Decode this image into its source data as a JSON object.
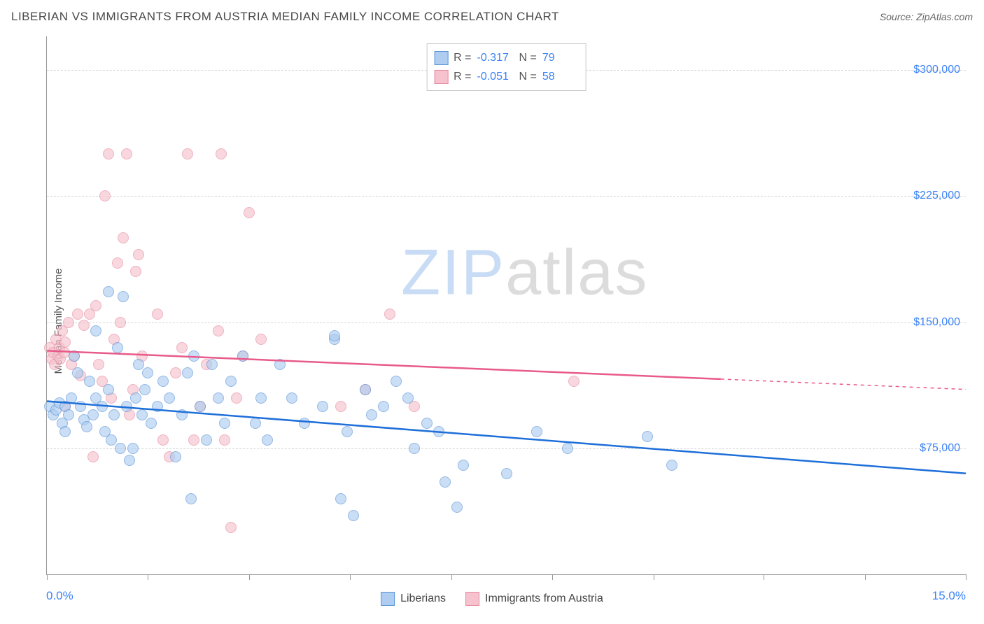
{
  "header": {
    "title": "LIBERIAN VS IMMIGRANTS FROM AUSTRIA MEDIAN FAMILY INCOME CORRELATION CHART",
    "source_label": "Source:",
    "source_value": "ZipAtlas.com"
  },
  "watermark": {
    "part1": "ZIP",
    "part2": "atlas"
  },
  "chart": {
    "type": "scatter",
    "ylabel": "Median Family Income",
    "xlim": [
      0,
      15
    ],
    "ylim": [
      0,
      320000
    ],
    "x_axis": {
      "start_label": "0.0%",
      "end_label": "15.0%",
      "tick_positions_pct": [
        0,
        11,
        22,
        33,
        44,
        55,
        66,
        78,
        89,
        100
      ]
    },
    "y_axis": {
      "gridlines": [
        75000,
        150000,
        225000,
        300000
      ],
      "labels": [
        "$75,000",
        "$150,000",
        "$225,000",
        "$300,000"
      ],
      "label_fontsize": 16,
      "label_color": "#3b82f6"
    },
    "background_color": "#ffffff",
    "grid_color": "#d8d8d8",
    "marker_radius": 8,
    "series": [
      {
        "id": "liberians",
        "label": "Liberians",
        "fill": "#aecdf0",
        "stroke": "#5a94d8",
        "fill_opacity": 0.65,
        "R": "-0.317",
        "N": "79",
        "trend": {
          "color": "#1e6fd9",
          "width": 2.5,
          "y_at_x0": 103000,
          "y_at_x15": 60000,
          "x_solid_end": 15
        },
        "points": [
          [
            0.05,
            100000
          ],
          [
            0.1,
            95000
          ],
          [
            0.15,
            98000
          ],
          [
            0.2,
            102000
          ],
          [
            0.25,
            90000
          ],
          [
            0.3,
            85000
          ],
          [
            0.3,
            100000
          ],
          [
            0.35,
            95000
          ],
          [
            0.4,
            105000
          ],
          [
            0.45,
            130000
          ],
          [
            0.5,
            120000
          ],
          [
            0.55,
            100000
          ],
          [
            0.6,
            92000
          ],
          [
            0.65,
            88000
          ],
          [
            0.7,
            115000
          ],
          [
            0.75,
            95000
          ],
          [
            0.8,
            105000
          ],
          [
            0.9,
            100000
          ],
          [
            0.95,
            85000
          ],
          [
            1.0,
            110000
          ],
          [
            1.05,
            80000
          ],
          [
            1.1,
            95000
          ],
          [
            1.15,
            135000
          ],
          [
            1.2,
            75000
          ],
          [
            1.25,
            165000
          ],
          [
            1.3,
            100000
          ],
          [
            1.35,
            68000
          ],
          [
            1.4,
            75000
          ],
          [
            1.45,
            105000
          ],
          [
            1.5,
            125000
          ],
          [
            1.55,
            95000
          ],
          [
            1.6,
            110000
          ],
          [
            1.65,
            120000
          ],
          [
            1.7,
            90000
          ],
          [
            1.8,
            100000
          ],
          [
            1.9,
            115000
          ],
          [
            2.0,
            105000
          ],
          [
            2.1,
            70000
          ],
          [
            2.2,
            95000
          ],
          [
            2.3,
            120000
          ],
          [
            2.35,
            45000
          ],
          [
            2.4,
            130000
          ],
          [
            2.5,
            100000
          ],
          [
            2.6,
            80000
          ],
          [
            2.7,
            125000
          ],
          [
            2.8,
            105000
          ],
          [
            2.9,
            90000
          ],
          [
            3.0,
            115000
          ],
          [
            3.2,
            130000
          ],
          [
            3.4,
            90000
          ],
          [
            3.5,
            105000
          ],
          [
            3.6,
            80000
          ],
          [
            3.8,
            125000
          ],
          [
            4.0,
            105000
          ],
          [
            4.2,
            90000
          ],
          [
            4.5,
            100000
          ],
          [
            4.7,
            140000
          ],
          [
            4.7,
            142000
          ],
          [
            4.8,
            45000
          ],
          [
            4.9,
            85000
          ],
          [
            5.0,
            35000
          ],
          [
            5.2,
            110000
          ],
          [
            5.3,
            95000
          ],
          [
            5.5,
            100000
          ],
          [
            5.7,
            115000
          ],
          [
            5.9,
            105000
          ],
          [
            6.0,
            75000
          ],
          [
            6.2,
            90000
          ],
          [
            6.4,
            85000
          ],
          [
            6.5,
            55000
          ],
          [
            6.7,
            40000
          ],
          [
            6.8,
            65000
          ],
          [
            7.5,
            60000
          ],
          [
            8.0,
            85000
          ],
          [
            8.5,
            75000
          ],
          [
            9.8,
            82000
          ],
          [
            10.2,
            65000
          ],
          [
            1.0,
            168000
          ],
          [
            0.8,
            145000
          ]
        ]
      },
      {
        "id": "austria",
        "label": "Immigrants from Austria",
        "fill": "#f5c2cd",
        "stroke": "#e88aa0",
        "fill_opacity": 0.65,
        "R": "-0.051",
        "N": "58",
        "trend": {
          "color": "#e85a8a",
          "width": 2.5,
          "y_at_x0": 133000,
          "y_at_x15": 110000,
          "x_solid_end": 11
        },
        "points": [
          [
            0.05,
            135000
          ],
          [
            0.08,
            128000
          ],
          [
            0.1,
            132000
          ],
          [
            0.12,
            125000
          ],
          [
            0.15,
            140000
          ],
          [
            0.18,
            130000
          ],
          [
            0.2,
            135000
          ],
          [
            0.22,
            128000
          ],
          [
            0.25,
            145000
          ],
          [
            0.28,
            132000
          ],
          [
            0.3,
            138000
          ],
          [
            0.35,
            150000
          ],
          [
            0.4,
            125000
          ],
          [
            0.45,
            130000
          ],
          [
            0.5,
            155000
          ],
          [
            0.55,
            118000
          ],
          [
            0.6,
            148000
          ],
          [
            0.7,
            155000
          ],
          [
            0.8,
            160000
          ],
          [
            0.85,
            125000
          ],
          [
            0.9,
            115000
          ],
          [
            0.75,
            70000
          ],
          [
            0.95,
            225000
          ],
          [
            1.0,
            250000
          ],
          [
            1.05,
            105000
          ],
          [
            1.1,
            140000
          ],
          [
            1.15,
            185000
          ],
          [
            1.2,
            150000
          ],
          [
            1.25,
            200000
          ],
          [
            1.3,
            250000
          ],
          [
            1.35,
            95000
          ],
          [
            1.4,
            110000
          ],
          [
            1.45,
            180000
          ],
          [
            1.5,
            190000
          ],
          [
            1.55,
            130000
          ],
          [
            1.8,
            155000
          ],
          [
            1.9,
            80000
          ],
          [
            2.0,
            70000
          ],
          [
            2.1,
            120000
          ],
          [
            2.2,
            135000
          ],
          [
            2.3,
            250000
          ],
          [
            2.4,
            80000
          ],
          [
            2.5,
            100000
          ],
          [
            2.6,
            125000
          ],
          [
            2.8,
            145000
          ],
          [
            2.85,
            250000
          ],
          [
            2.9,
            80000
          ],
          [
            3.0,
            28000
          ],
          [
            3.1,
            105000
          ],
          [
            3.2,
            130000
          ],
          [
            3.3,
            215000
          ],
          [
            3.5,
            140000
          ],
          [
            4.8,
            100000
          ],
          [
            5.2,
            110000
          ],
          [
            5.6,
            155000
          ],
          [
            6.0,
            100000
          ],
          [
            8.6,
            115000
          ],
          [
            0.3,
            100000
          ]
        ]
      }
    ],
    "top_legend": {
      "R_label": "R =",
      "N_label": "N ="
    }
  }
}
